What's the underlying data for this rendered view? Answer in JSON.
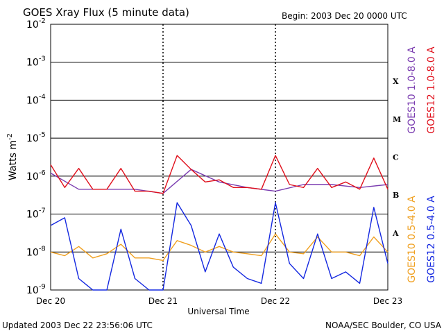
{
  "header": {
    "title": "GOES Xray Flux (5 minute data)",
    "begin": "Begin:  2003 Dec 20 0000 UTC"
  },
  "footer": {
    "updated": "Updated 2003 Dec 22 23:56:06 UTC",
    "credit": "NOAA/SEC Boulder, CO USA"
  },
  "colors": {
    "goes10_long": "#7a3cb0",
    "goes12_long": "#e0101c",
    "goes10_short": "#f0a020",
    "goes12_short": "#1428e0"
  },
  "chart_data": {
    "type": "line",
    "title": "GOES Xray Flux (5 minute data)",
    "xlabel": "Universal Time",
    "ylabel": "Watts m",
    "ylabel_sup": "-2",
    "yscale": "log",
    "ylim": [
      1e-09,
      0.01
    ],
    "xlim": [
      "2003-12-20 00:00",
      "2003-12-23 00:00"
    ],
    "x_ticks": [
      "Dec 20",
      "Dec 21",
      "Dec 22",
      "Dec 23"
    ],
    "y_ticks": [
      {
        "base": "10",
        "exp": "-2"
      },
      {
        "base": "10",
        "exp": "-3"
      },
      {
        "base": "10",
        "exp": "-4"
      },
      {
        "base": "10",
        "exp": "-5"
      },
      {
        "base": "10",
        "exp": "-6"
      },
      {
        "base": "10",
        "exp": "-7"
      },
      {
        "base": "10",
        "exp": "-8"
      },
      {
        "base": "10",
        "exp": "-9"
      }
    ],
    "flare_classes": [
      "X",
      "M",
      "C",
      "B",
      "A"
    ],
    "grid": true,
    "legend_placement": "right",
    "series": [
      {
        "name": "GOES10 1.0-8.0 A",
        "x": [
          "2003-12-20 00:00",
          "2003-12-20 06:00",
          "2003-12-20 12:00",
          "2003-12-20 18:00",
          "2003-12-21 00:00",
          "2003-12-21 06:00",
          "2003-12-21 12:00",
          "2003-12-21 18:00",
          "2003-12-22 00:00",
          "2003-12-22 06:00",
          "2003-12-22 12:00",
          "2003-12-22 18:00",
          "2003-12-23 00:00"
        ],
        "values": [
          1.2e-06,
          4.5e-07,
          4.5e-07,
          4.5e-07,
          3.5e-07,
          1.5e-06,
          7e-07,
          5e-07,
          4e-07,
          6e-07,
          6e-07,
          5e-07,
          6e-07
        ]
      },
      {
        "name": "GOES12 1.0-8.0 A",
        "x": [
          "2003-12-20 00:00",
          "2003-12-20 03:00",
          "2003-12-20 06:00",
          "2003-12-20 09:00",
          "2003-12-20 12:00",
          "2003-12-20 15:00",
          "2003-12-20 18:00",
          "2003-12-20 21:00",
          "2003-12-21 00:00",
          "2003-12-21 03:00",
          "2003-12-21 06:00",
          "2003-12-21 09:00",
          "2003-12-21 12:00",
          "2003-12-21 15:00",
          "2003-12-21 18:00",
          "2003-12-21 21:00",
          "2003-12-22 00:00",
          "2003-12-22 03:00",
          "2003-12-22 06:00",
          "2003-12-22 09:00",
          "2003-12-22 12:00",
          "2003-12-22 15:00",
          "2003-12-22 18:00",
          "2003-12-22 21:00",
          "2003-12-23 00:00"
        ],
        "values": [
          2e-06,
          5e-07,
          1.6e-06,
          4.5e-07,
          4.5e-07,
          1.6e-06,
          4e-07,
          4e-07,
          3.5e-07,
          3.5e-06,
          1.5e-06,
          7e-07,
          8e-07,
          5e-07,
          5e-07,
          4.5e-07,
          3.5e-06,
          6e-07,
          5e-07,
          1.6e-06,
          5e-07,
          7e-07,
          4.5e-07,
          3e-06,
          4.5e-07
        ]
      },
      {
        "name": "GOES10 0.5-4.0 A",
        "x": [
          "2003-12-20 00:00",
          "2003-12-20 03:00",
          "2003-12-20 06:00",
          "2003-12-20 09:00",
          "2003-12-20 12:00",
          "2003-12-20 15:00",
          "2003-12-20 18:00",
          "2003-12-20 21:00",
          "2003-12-21 00:00",
          "2003-12-21 03:00",
          "2003-12-21 06:00",
          "2003-12-21 09:00",
          "2003-12-21 12:00",
          "2003-12-21 15:00",
          "2003-12-21 18:00",
          "2003-12-21 21:00",
          "2003-12-22 00:00",
          "2003-12-22 03:00",
          "2003-12-22 06:00",
          "2003-12-22 09:00",
          "2003-12-22 12:00",
          "2003-12-22 15:00",
          "2003-12-22 18:00",
          "2003-12-22 21:00",
          "2003-12-23 00:00"
        ],
        "values": [
          1e-08,
          8e-09,
          1.4e-08,
          7e-09,
          9e-09,
          1.6e-08,
          7e-09,
          7e-09,
          6e-09,
          2e-08,
          1.5e-08,
          1e-08,
          1.4e-08,
          1e-08,
          9e-09,
          8e-09,
          3e-08,
          1e-08,
          9e-09,
          2.5e-08,
          1e-08,
          1e-08,
          8e-09,
          2.5e-08,
          1e-08
        ]
      },
      {
        "name": "GOES12 0.5-4.0 A",
        "x": [
          "2003-12-20 00:00",
          "2003-12-20 03:00",
          "2003-12-20 06:00",
          "2003-12-20 09:00",
          "2003-12-20 12:00",
          "2003-12-20 15:00",
          "2003-12-20 18:00",
          "2003-12-20 21:00",
          "2003-12-21 00:00",
          "2003-12-21 03:00",
          "2003-12-21 06:00",
          "2003-12-21 09:00",
          "2003-12-21 12:00",
          "2003-12-21 15:00",
          "2003-12-21 18:00",
          "2003-12-21 21:00",
          "2003-12-22 00:00",
          "2003-12-22 03:00",
          "2003-12-22 06:00",
          "2003-12-22 09:00",
          "2003-12-22 12:00",
          "2003-12-22 15:00",
          "2003-12-22 18:00",
          "2003-12-22 21:00",
          "2003-12-23 00:00"
        ],
        "values": [
          5e-08,
          8e-08,
          2e-09,
          1e-09,
          1e-09,
          4e-08,
          2e-09,
          1e-09,
          1e-09,
          2e-07,
          5e-08,
          3e-09,
          3e-08,
          4e-09,
          2e-09,
          1.5e-09,
          2e-07,
          5e-09,
          2e-09,
          3e-08,
          2e-09,
          3e-09,
          1.5e-09,
          1.5e-07,
          5e-09
        ]
      }
    ]
  }
}
